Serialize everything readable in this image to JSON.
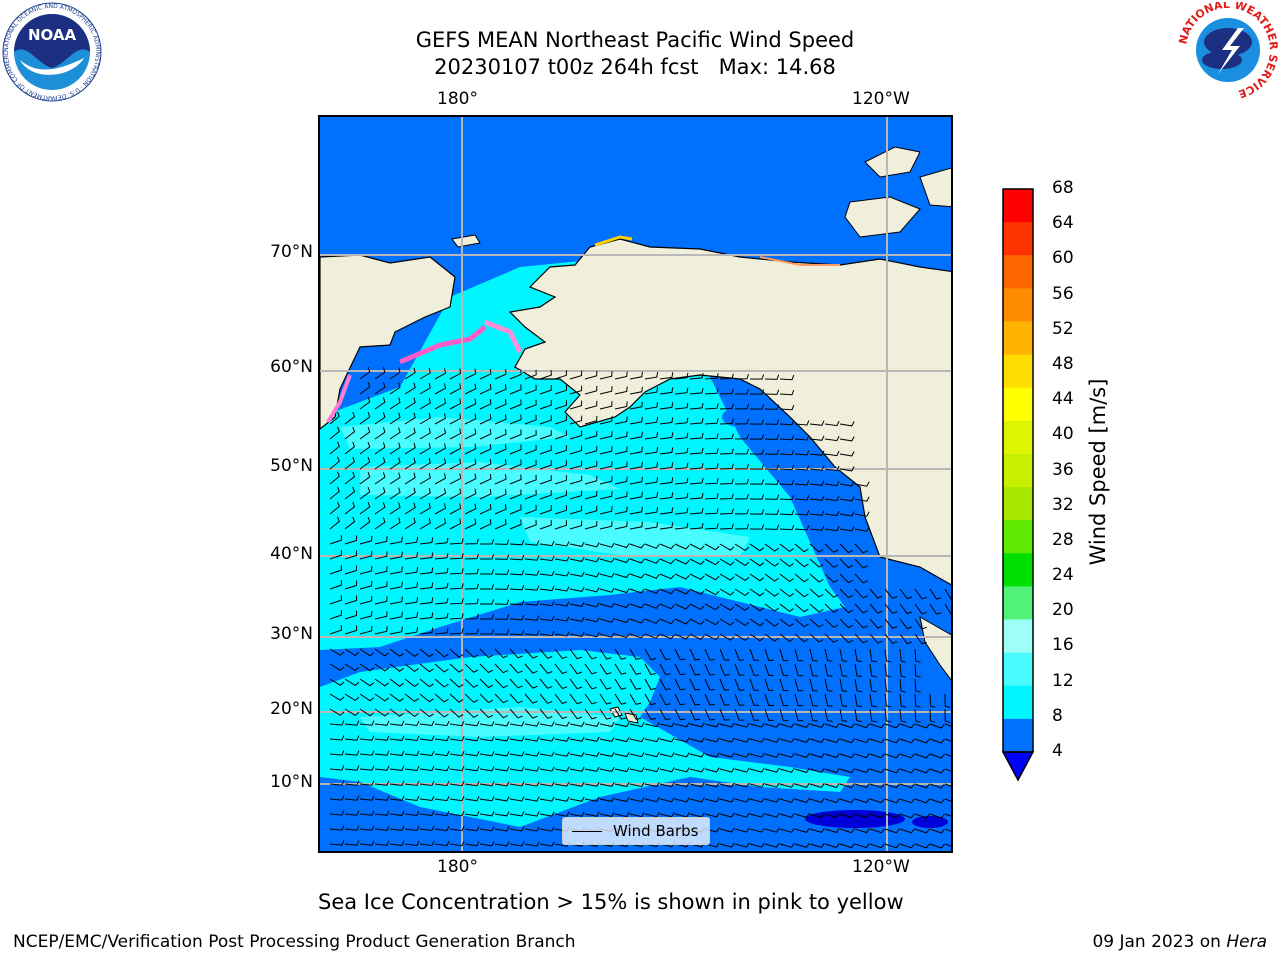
{
  "header": {
    "title_line1": "GEFS MEAN Northeast Pacific Wind Speed",
    "title_line2": "20230107 t00z 264h fcst   Max: 14.68"
  },
  "map": {
    "lon_labels_top": [
      "180°",
      "120°W"
    ],
    "lon_labels_bottom": [
      "180°",
      "120°W"
    ],
    "lat_labels": [
      "70°N",
      "60°N",
      "50°N",
      "40°N",
      "30°N",
      "20°N",
      "10°N"
    ],
    "legend_label": "Wind Barbs"
  },
  "colorbar": {
    "label": "Wind Speed [m/s]",
    "ticks": [
      "68",
      "64",
      "60",
      "56",
      "52",
      "48",
      "44",
      "40",
      "36",
      "32",
      "28",
      "24",
      "20",
      "16",
      "12",
      "8",
      "4"
    ],
    "colors": [
      "#ff0000",
      "#ff3300",
      "#ff6600",
      "#ff8c00",
      "#ffb300",
      "#ffdd00",
      "#ffff00",
      "#ddf500",
      "#c6f000",
      "#a8e800",
      "#5fe800",
      "#00e000",
      "#52f27a",
      "#9dfff7",
      "#48fcff",
      "#00f6ff",
      "#0070ff"
    ],
    "extend_color": "#0000ff"
  },
  "logos": {
    "noaa_text": "NOAA",
    "noaa_ring": "NATIONAL OCEANIC AND ATMOSPHERIC ADMINISTRATION · U.S. DEPARTMENT OF COMMERCE",
    "nws_ring": "NATIONAL WEATHER SERVICE"
  },
  "caption": "Sea Ice Concentration > 15% is shown in pink to yellow",
  "footer": {
    "left": "NCEP/EMC/Verification Post Processing Product Generation Branch",
    "right_date": "09 Jan 2023 on",
    "right_machine": "Hera"
  }
}
